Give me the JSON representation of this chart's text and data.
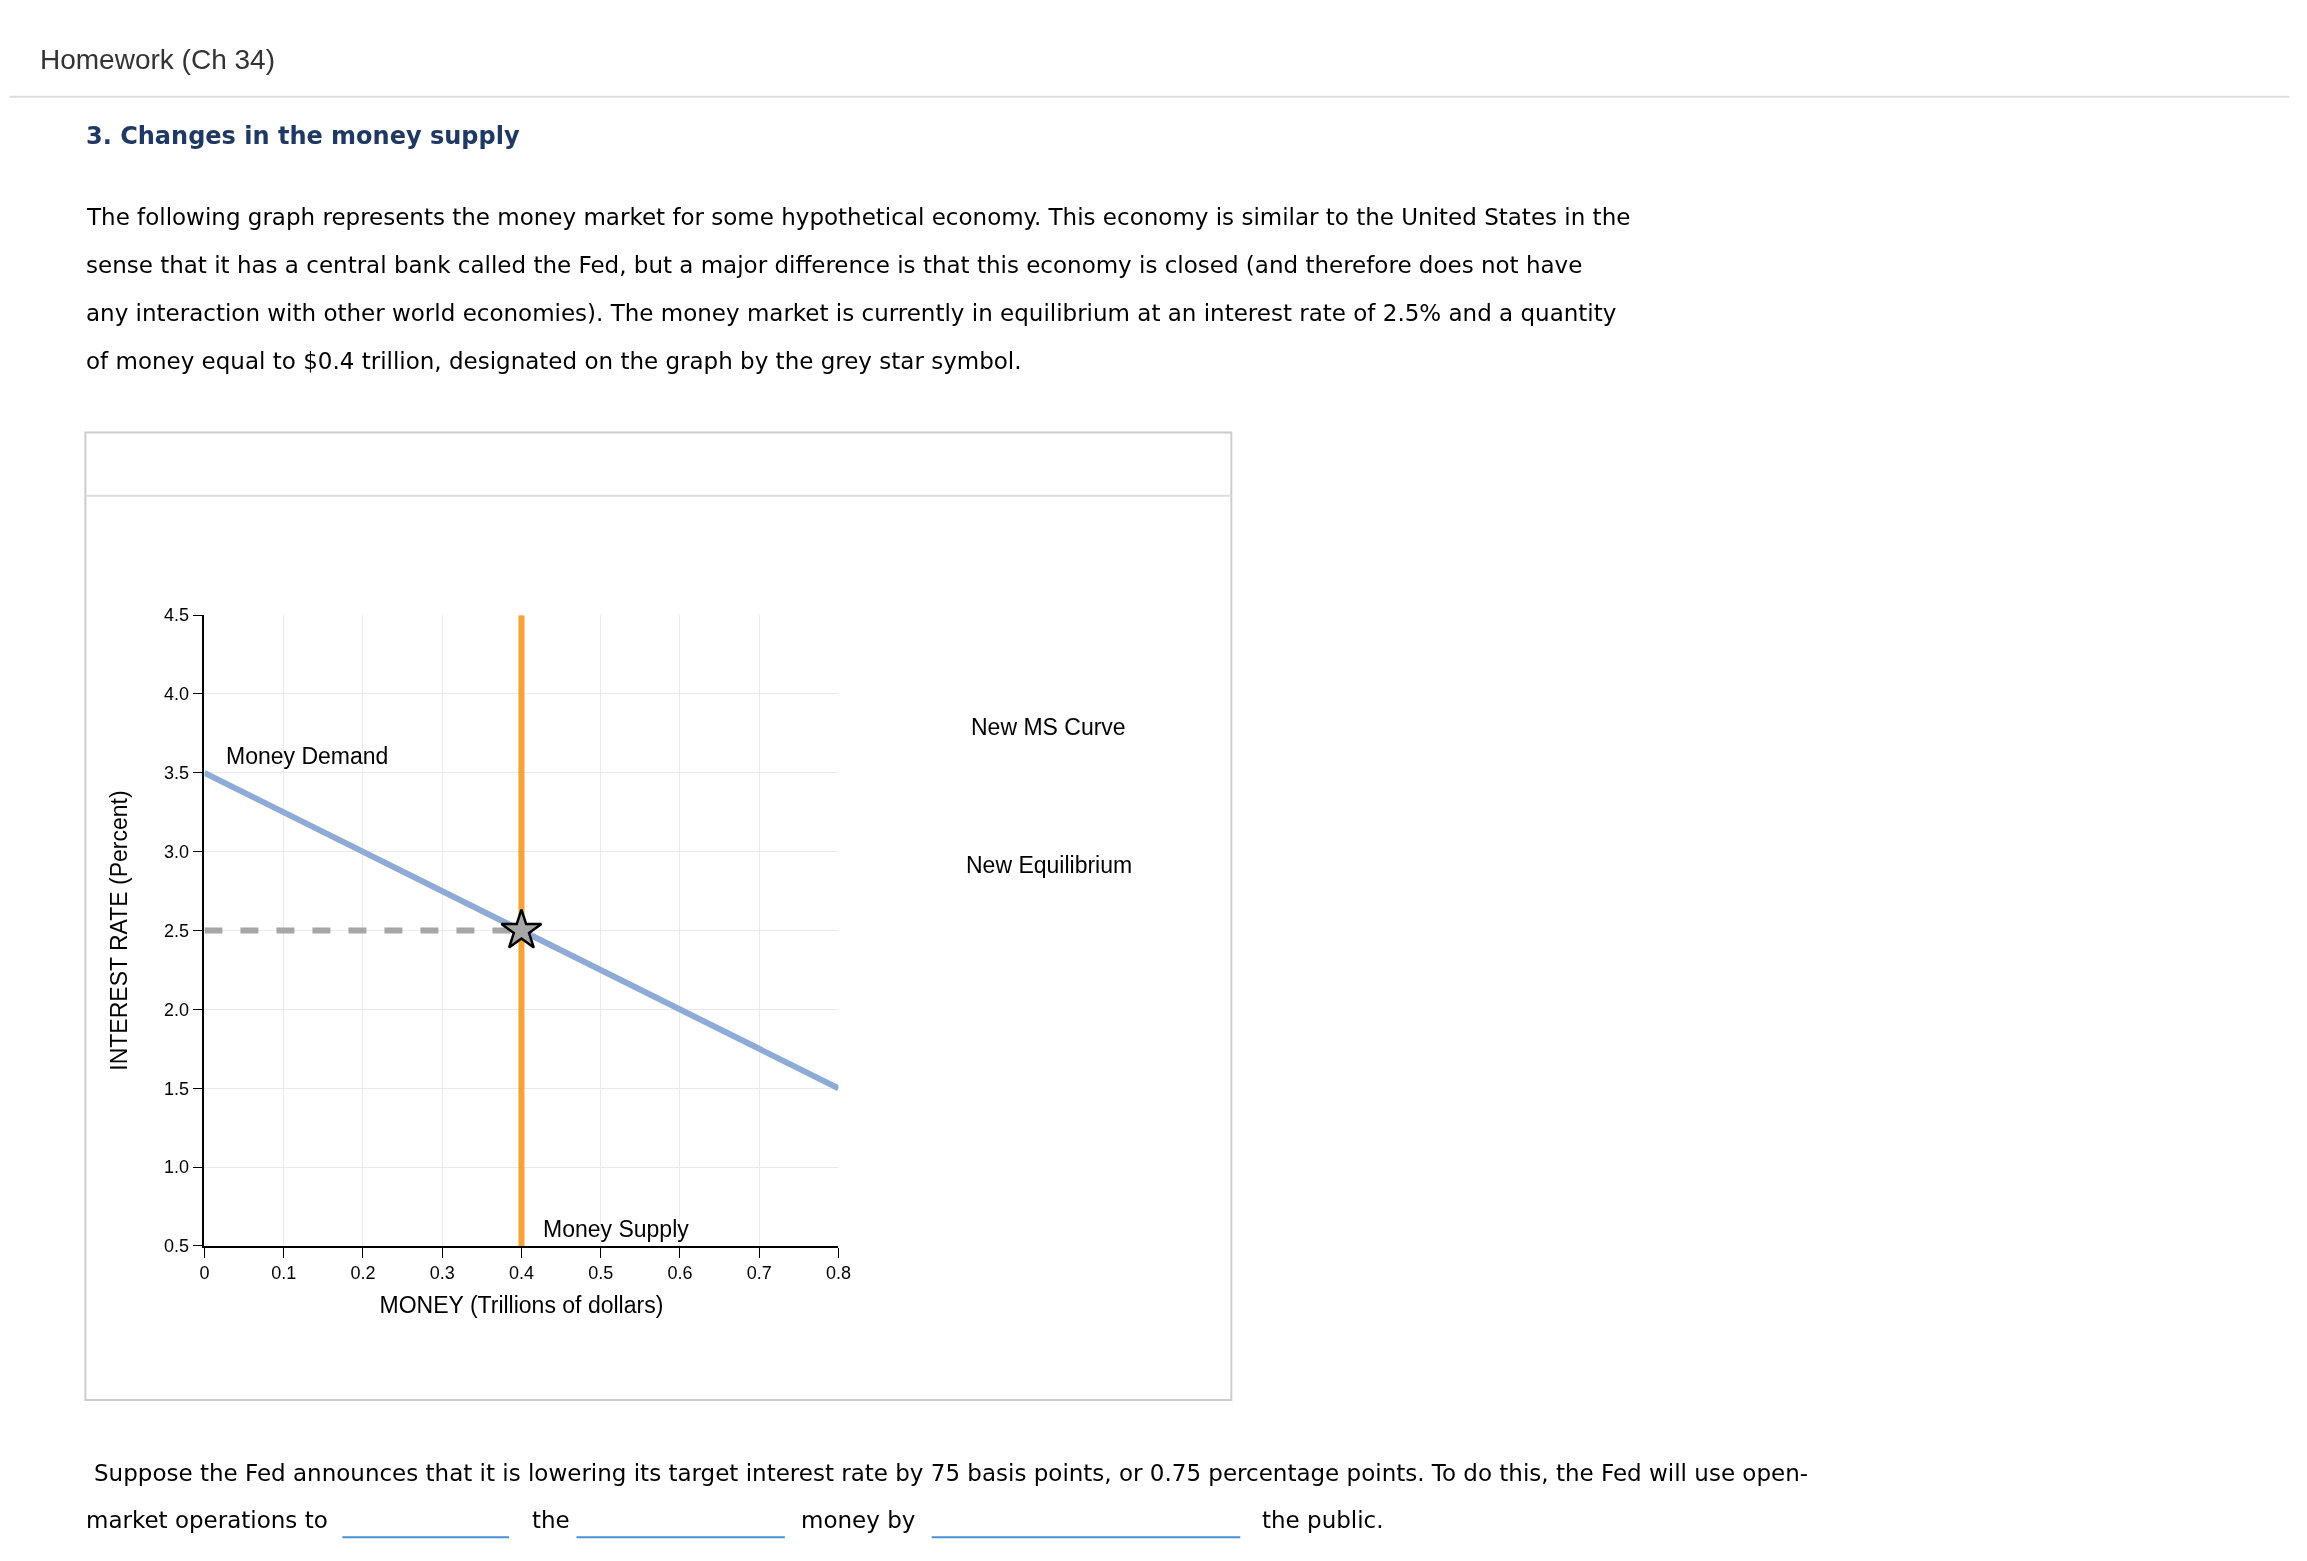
{
  "chart_data": {
    "type": "line",
    "title": "3. Changes in the money supply",
    "subtitle": "The following graph represents the money market for some hypothetical economy. This economy is similar to the United States in the sense that it has a central bank called the Fed, but a major difference is that this economy is closed (and therefore does not have any interaction with other world economies). The money market is currently in equilibrium at an interest rate of 2.5% and a quantity of money equal to $0.4 trillion, designated on the graph by the grey star symbol.",
    "xlabel": "MONEY (Trillions of dollars)",
    "ylabel": "INTEREST RATE (Percent)",
    "annotations": [
      "New MS Curve",
      "New Equilibrium",
      "Homework (Ch 34)",
      "Suppose the Fed announces that it is lowering its target interest rate by 75 basis points, or 0.75 percentage points. To do this, the Fed will use open-",
      "market operations to",
      "the",
      "money by",
      "the public."
    ],
    "series": [
      {
        "name": "Money Demand",
        "color": "#8eaad6",
        "x": [
          0,
          0.8
        ],
        "values": [
          3.5,
          1.5
        ]
      },
      {
        "name": "Money Supply",
        "color": "#f7a234",
        "x": [
          0.4,
          0.4
        ],
        "values": [
          0.5,
          4.5
        ]
      },
      {
        "color": "#a6a6a6",
        "x": [
          0,
          0.4
        ],
        "values": [
          2.5,
          2.5
        ],
        "line_style": "dashed"
      },
      {
        "type": "scatter",
        "color": "#a6a6a6",
        "x": [
          0.4
        ],
        "values": [
          2.5
        ],
        "marker": "star"
      }
    ],
    "xlim": [
      0,
      0.8
    ],
    "xticks": [
      {
        "value": 0,
        "label": "0"
      },
      0.1,
      0.2,
      0.3,
      0.4,
      0.5,
      0.6,
      0.7,
      0.8
    ],
    "ylim": [
      0.5,
      4.5
    ],
    "yticks": [
      0.5,
      {
        "value": 1,
        "label": "1.0"
      },
      1.5,
      {
        "value": 2,
        "label": "2.0"
      },
      2.5,
      {
        "value": 3,
        "label": "3.0"
      },
      3.5,
      {
        "value": 4,
        "label": "4.0"
      },
      4.5
    ],
    "grid": true
  }
}
